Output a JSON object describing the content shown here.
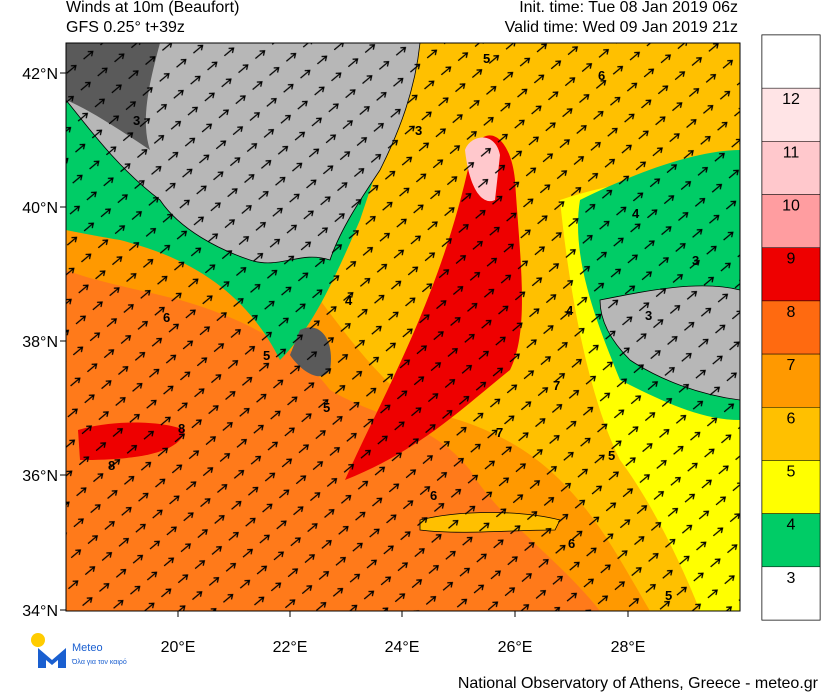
{
  "header": {
    "title": "Winds at 10m (Beaufort)",
    "model": "GFS 0.25° t+39z",
    "init": "Init. time: Tue 08 Jan 2019 06z",
    "valid": "Valid time: Wed 09 Jan 2019 21z"
  },
  "map": {
    "lat_labels": [
      "42°N",
      "40°N",
      "38°N",
      "36°N",
      "34°N"
    ],
    "lon_labels": [
      "20°E",
      "22°E",
      "24°E",
      "26°E",
      "28°E"
    ],
    "contour_labels": [
      "3",
      "3",
      "3",
      "4",
      "5",
      "5",
      "6",
      "6",
      "8",
      "8",
      "7",
      "7",
      "6",
      "5",
      "4",
      "3",
      "4",
      "5",
      "6",
      "5"
    ]
  },
  "colorbar": {
    "levels": [
      {
        "label": "12",
        "color": "#ffe4e6"
      },
      {
        "label": "11",
        "color": "#ffc8cc"
      },
      {
        "label": "10",
        "color": "#ff9da0"
      },
      {
        "label": "9",
        "color": "#ee0000"
      },
      {
        "label": "8",
        "color": "#ff6a10"
      },
      {
        "label": "7",
        "color": "#ff9900"
      },
      {
        "label": "6",
        "color": "#ffc000"
      },
      {
        "label": "5",
        "color": "#ffff00"
      },
      {
        "label": "4",
        "color": "#00cc66"
      },
      {
        "label": "3",
        "color": "#ffffff"
      }
    ]
  },
  "logo": {
    "name": "Meteo",
    "tagline": "Όλα για τον καιρό"
  },
  "footer": "National Observatory of Athens, Greece - meteo.gr"
}
